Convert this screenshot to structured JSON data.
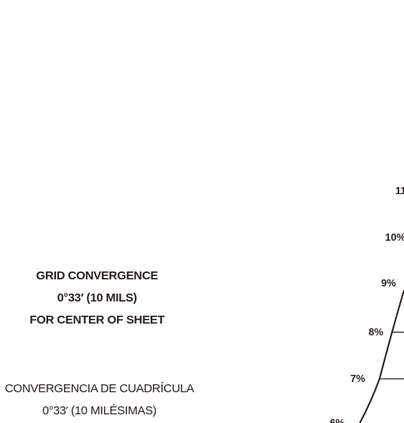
{
  "grid_convergence_en": {
    "line1": "GRID CONVERGENCE",
    "line2": "0°33′  (10  MILS)",
    "line3": "FOR CENTER OF SHEET"
  },
  "grid_convergence_es": {
    "line1": "CONVERGENCIA DE CUADRÍCULA",
    "line2": "0°33′  (10  MILÉSIMAS)"
  },
  "slope_scale": {
    "labels": [
      "11",
      "10%",
      "9%",
      "8%",
      "7%",
      "6%"
    ]
  }
}
